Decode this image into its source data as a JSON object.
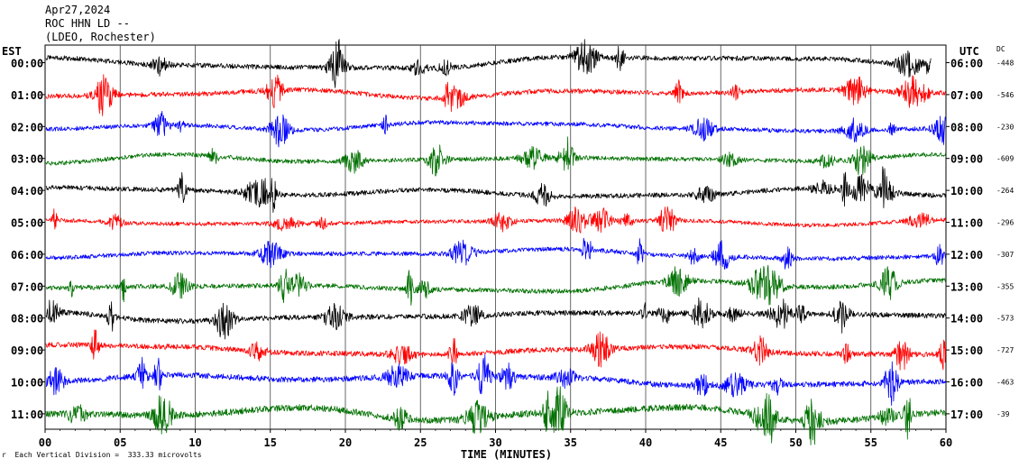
{
  "header": {
    "date": "Apr27,2024",
    "station": "ROC HHN LD --",
    "network": "(LDEO, Rochester)"
  },
  "left_tz_label": "EST",
  "right_tz_label": "UTC",
  "dc_label": "DC",
  "footnote": "Each Vertical Division =  333.33 microvolts",
  "footnote_mark": "r",
  "colors": {
    "black": "#000000",
    "red": "#ff0000",
    "blue": "#0000ff",
    "green": "#007000",
    "grid": "#000000"
  },
  "chart_data": {
    "type": "line",
    "title": "ROC HHN LD --",
    "xlabel": "TIME (MINUTES)",
    "ylabel": "",
    "x_ticks": [
      "00",
      "05",
      "10",
      "15",
      "20",
      "25",
      "30",
      "35",
      "40",
      "45",
      "50",
      "55",
      "60"
    ],
    "xlim": [
      0,
      60
    ],
    "series": [
      {
        "left": "00:00",
        "right": "06:00",
        "dc": "-448",
        "color": "black",
        "end_minute": 59,
        "amp": 1.1
      },
      {
        "left": "01:00",
        "right": "07:00",
        "dc": "-546",
        "color": "red",
        "end_minute": 60,
        "amp": 1.1
      },
      {
        "left": "02:00",
        "right": "08:00",
        "dc": "-230",
        "color": "blue",
        "end_minute": 60,
        "amp": 1.0
      },
      {
        "left": "03:00",
        "right": "09:00",
        "dc": "-609",
        "color": "green",
        "end_minute": 60,
        "amp": 1.0
      },
      {
        "left": "04:00",
        "right": "10:00",
        "dc": "-264",
        "color": "black",
        "end_minute": 60,
        "amp": 1.1
      },
      {
        "left": "05:00",
        "right": "11:00",
        "dc": "-296",
        "color": "red",
        "end_minute": 60,
        "amp": 0.9
      },
      {
        "left": "06:00",
        "right": "12:00",
        "dc": "-307",
        "color": "blue",
        "end_minute": 60,
        "amp": 1.0
      },
      {
        "left": "07:00",
        "right": "13:00",
        "dc": "-355",
        "color": "green",
        "end_minute": 60,
        "amp": 1.1
      },
      {
        "left": "08:00",
        "right": "14:00",
        "dc": "-573",
        "color": "black",
        "end_minute": 60,
        "amp": 1.2
      },
      {
        "left": "09:00",
        "right": "15:00",
        "dc": "-727",
        "color": "red",
        "end_minute": 60,
        "amp": 1.2
      },
      {
        "left": "10:00",
        "right": "16:00",
        "dc": "-463",
        "color": "blue",
        "end_minute": 60,
        "amp": 1.3
      },
      {
        "left": "11:00",
        "right": "17:00",
        "dc": "-39",
        "color": "green",
        "end_minute": 60,
        "amp": 1.5
      }
    ]
  }
}
